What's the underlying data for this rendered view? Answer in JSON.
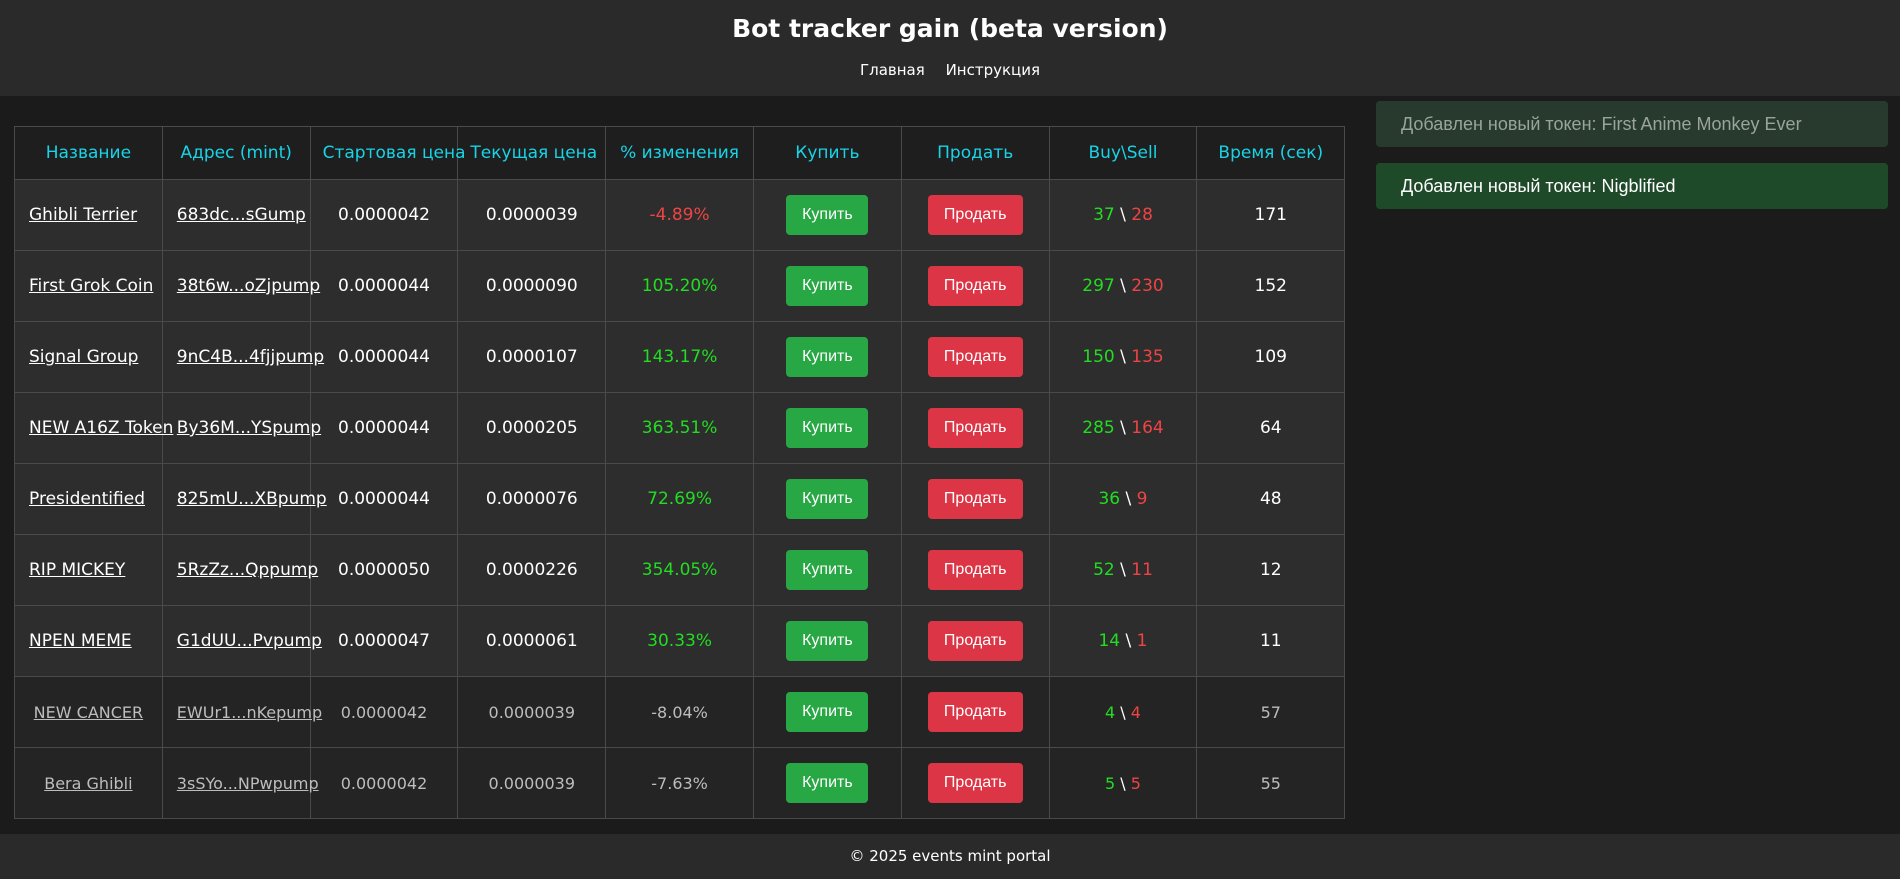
{
  "header": {
    "title": "Bot tracker gain (beta version)",
    "nav": [
      "Главная",
      "Инструкция"
    ]
  },
  "table": {
    "columns": [
      "Название",
      "Адрес (mint)",
      "Стартовая цена",
      "Текущая цена",
      "% изменения",
      "Купить",
      "Продать",
      "Buy\\Sell",
      "Время (сек)"
    ],
    "buy_label": "Купить",
    "sell_label": "Продать",
    "rows": [
      {
        "name": "Ghibli Terrier",
        "address": "683dc...sGump",
        "start": "0.0000042",
        "current": "0.0000039",
        "change": "-4.89%",
        "trend": "down",
        "buys": "37",
        "sells": "28",
        "time": "171",
        "state": "active"
      },
      {
        "name": "First Grok Coin",
        "address": "38t6w...oZjpump",
        "start": "0.0000044",
        "current": "0.0000090",
        "change": "105.20%",
        "trend": "up",
        "buys": "297",
        "sells": "230",
        "time": "152",
        "state": "active"
      },
      {
        "name": "Signal Group",
        "address": "9nC4B...4fjjpump",
        "start": "0.0000044",
        "current": "0.0000107",
        "change": "143.17%",
        "trend": "up",
        "buys": "150",
        "sells": "135",
        "time": "109",
        "state": "active"
      },
      {
        "name": "NEW A16Z Token",
        "address": "By36M...YSpump",
        "start": "0.0000044",
        "current": "0.0000205",
        "change": "363.51%",
        "trend": "up",
        "buys": "285",
        "sells": "164",
        "time": "64",
        "state": "active"
      },
      {
        "name": "Presidentified",
        "address": "825mU...XBpump",
        "start": "0.0000044",
        "current": "0.0000076",
        "change": "72.69%",
        "trend": "up",
        "buys": "36",
        "sells": "9",
        "time": "48",
        "state": "active"
      },
      {
        "name": "RIP MICKEY",
        "address": "5RzZz...Qppump",
        "start": "0.0000050",
        "current": "0.0000226",
        "change": "354.05%",
        "trend": "up",
        "buys": "52",
        "sells": "11",
        "time": "12",
        "state": "active"
      },
      {
        "name": "NPEN MEME",
        "address": "G1dUU...Pvpump",
        "start": "0.0000047",
        "current": "0.0000061",
        "change": "30.33%",
        "trend": "up",
        "buys": "14",
        "sells": "1",
        "time": "11",
        "state": "active"
      },
      {
        "name": "NEW CANCER",
        "address": "EWUr1...nKepump",
        "start": "0.0000042",
        "current": "0.0000039",
        "change": "-8.04%",
        "trend": "down",
        "buys": "4",
        "sells": "4",
        "time": "57",
        "state": "inactive"
      },
      {
        "name": "Bera Ghibli",
        "address": "3sSYo...NPwpump",
        "start": "0.0000042",
        "current": "0.0000039",
        "change": "-7.63%",
        "trend": "down",
        "buys": "5",
        "sells": "5",
        "time": "55",
        "state": "inactive"
      }
    ]
  },
  "notifications": [
    "Добавлен новый токен: First Anime Monkey Ever",
    "Добавлен новый токен: Nigblified"
  ],
  "footer": "© 2025 events mint portal",
  "colors": {
    "header_bg": "#2a2a2a",
    "accent_cyan": "#19d3e6",
    "positive": "#22dd22",
    "negative": "#ee4444",
    "buy_button": "#28a745",
    "sell_button": "#dc3545"
  }
}
